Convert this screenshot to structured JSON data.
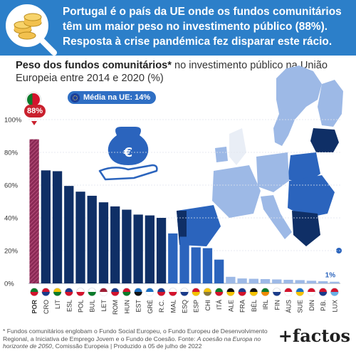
{
  "banner": {
    "headline": "Portugal é o país da UE onde os fundos comunitários têm um maior peso no investimento público (88%). Resposta à crise pandémica fez disparar este rácio."
  },
  "subtitle": {
    "bold": "Peso dos fundos comunitários*",
    "rest": " no investimento público na União Europeia entre 2014 e 2020 (%)"
  },
  "badges": {
    "eu_average": "Média na UE: 14%",
    "portugal_value": "88%",
    "lowest_value": "1%"
  },
  "footnote": {
    "text": "* Fundos comunitários englobam o Fundo Social Europeu, o Fundo Europeu de Desenvolvimento Regional, a Iniciativa de Emprego Jovem e o Fundo de Coesão. Fonte: ",
    "source_italic": "A coesão na Europa no horizonte de 2050",
    "source_rest": ", Comissão Europeia | Produzido a 05 de julho de 2022"
  },
  "logo": "+factos",
  "colors": {
    "banner": "#2c7fc9",
    "bar_dark": "#0f2f66",
    "bar_mid": "#2b64bd",
    "bar_light": "#9db9e6",
    "portugal_bar": "#8a2a55",
    "highlight": "#c9202d"
  },
  "chart_data": {
    "type": "bar",
    "title": "Peso dos fundos comunitários* no investimento público na União Europeia entre 2014 e 2020 (%)",
    "ylim": [
      0,
      100
    ],
    "yticks": [
      "0%",
      "20%",
      "40%",
      "60%",
      "80%",
      "100%"
    ],
    "ytick_values": [
      0,
      20,
      40,
      60,
      80,
      100
    ],
    "grid": true,
    "categories": [
      "POR",
      "CRO",
      "LIT",
      "ESL",
      "POL",
      "BUL",
      "LET",
      "ROM",
      "HUN",
      "EST",
      "GRÉ",
      "R.C.",
      "MAL",
      "ESQ",
      "ESP",
      "CHI",
      "ITÁ",
      "ALE",
      "FRA",
      "BÉL",
      "IRL",
      "FIN",
      "ÁUS",
      "SUE",
      "DIN",
      "P.B.",
      "LUX"
    ],
    "values": [
      88,
      69,
      68.5,
      59.5,
      56,
      53.5,
      49.5,
      47,
      45,
      42,
      41.5,
      40,
      30.5,
      28.5,
      22,
      21.5,
      14.5,
      4,
      3,
      2.8,
      2.6,
      2.4,
      2.2,
      2,
      1.6,
      1.3,
      1
    ],
    "flag_colors": [
      [
        "#0a7a2a",
        "#d3132c"
      ],
      [
        "#d3132c",
        "#1a3b8a"
      ],
      [
        "#f4c300",
        "#0a7a2a"
      ],
      [
        "#1a3b8a",
        "#d3132c"
      ],
      [
        "#ffffff",
        "#d3132c"
      ],
      [
        "#ffffff",
        "#0a7a2a"
      ],
      [
        "#9e1b32",
        "#ffffff"
      ],
      [
        "#1a3b8a",
        "#d3132c"
      ],
      [
        "#d3132c",
        "#0a7a2a"
      ],
      [
        "#1a6fc4",
        "#111111"
      ],
      [
        "#1a6fc4",
        "#ffffff"
      ],
      [
        "#1a3b8a",
        "#d3132c"
      ],
      [
        "#ffffff",
        "#d3132c"
      ],
      [
        "#ffffff",
        "#1a3b8a"
      ],
      [
        "#d3132c",
        "#f4c300"
      ],
      [
        "#f4c300",
        "#8a7a3a"
      ],
      [
        "#0a7a2a",
        "#d3132c"
      ],
      [
        "#111111",
        "#f4c300"
      ],
      [
        "#1a3b8a",
        "#d3132c"
      ],
      [
        "#111111",
        "#f4c300"
      ],
      [
        "#0a7a2a",
        "#f08a00"
      ],
      [
        "#ffffff",
        "#1a3b8a"
      ],
      [
        "#d3132c",
        "#ffffff"
      ],
      [
        "#1a6fc4",
        "#f4c300"
      ],
      [
        "#d3132c",
        "#ffffff"
      ],
      [
        "#d3132c",
        "#1a3b8a"
      ],
      [
        "#d3132c",
        "#6ab0e6"
      ]
    ]
  }
}
